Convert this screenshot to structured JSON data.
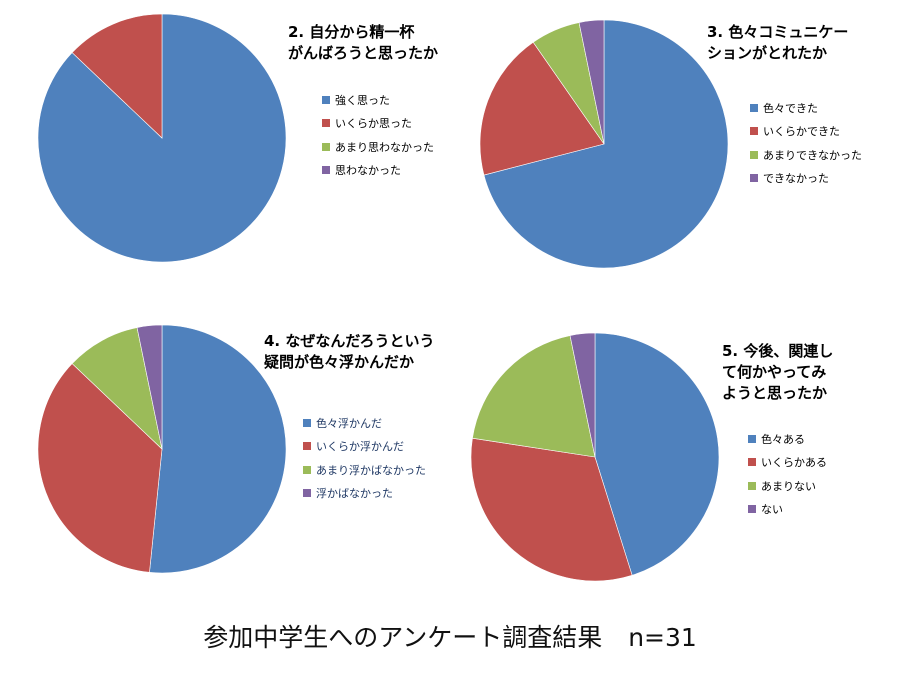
{
  "caption": {
    "main": "参加中学生へのアンケート調査結果",
    "n": "n=31"
  },
  "colors": [
    "#4f81bd",
    "#c0504d",
    "#9bbb59",
    "#8064a2"
  ],
  "chart_data": [
    {
      "type": "pie",
      "title_lines": [
        "2. 自分から精一杯",
        "がんばろうと思ったか"
      ],
      "categories": [
        "強く思った",
        "いくらか思った",
        "あまり思わなかった",
        "思わなかった"
      ],
      "values": [
        27,
        4,
        0,
        0
      ],
      "legend_position": "right"
    },
    {
      "type": "pie",
      "title_lines": [
        "3. 色々コミュニケー",
        "ションがとれたか"
      ],
      "categories": [
        "色々できた",
        "いくらかできた",
        "あまりできなかった",
        "できなかった"
      ],
      "values": [
        22,
        6,
        2,
        1
      ],
      "legend_position": "right"
    },
    {
      "type": "pie",
      "title_lines": [
        "4. なぜなんだろうという",
        "疑問が色々浮かんだか"
      ],
      "categories": [
        "色々浮かんだ",
        "いくらか浮かんだ",
        "あまり浮かばなかった",
        "浮かばなかった"
      ],
      "values": [
        16,
        11,
        3,
        1
      ],
      "legend_position": "right"
    },
    {
      "type": "pie",
      "title_lines": [
        "5. 今後、関連し",
        "て何かやってみ",
        "ようと思ったか"
      ],
      "categories": [
        "色々ある",
        "いくらかある",
        "あまりない",
        "ない"
      ],
      "values": [
        14,
        10,
        6,
        1
      ],
      "legend_position": "right"
    }
  ]
}
